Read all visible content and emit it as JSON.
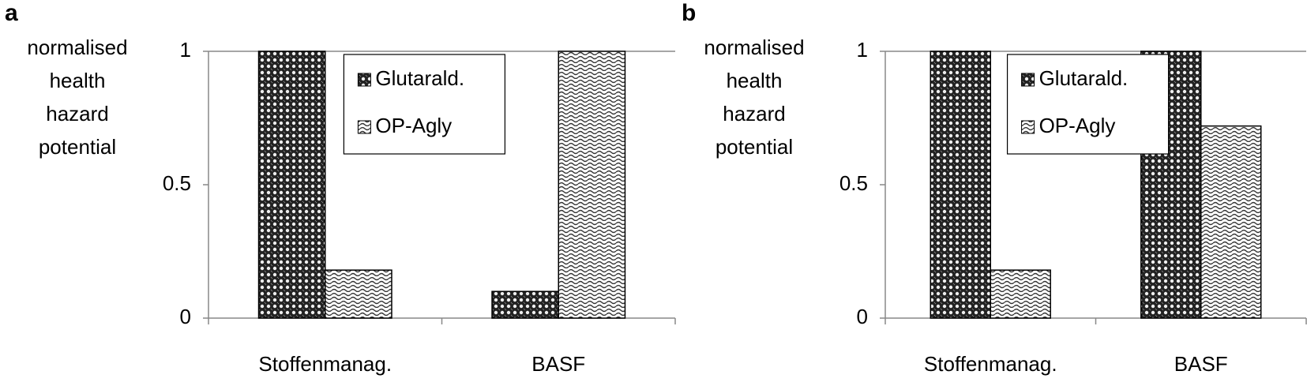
{
  "chart_data": [
    {
      "type": "bar",
      "panel_label": "a",
      "y_label": [
        "normalised",
        "health",
        "hazard",
        "potential"
      ],
      "categories": [
        "Stoffenmanag.",
        "BASF"
      ],
      "series": [
        {
          "name": "Glutarald.",
          "color": "#222222",
          "pattern": "dots",
          "values": [
            1,
            0.1
          ]
        },
        {
          "name": "OP-Agly",
          "color": "#bbbbbb",
          "pattern": "waves",
          "values": [
            0.18,
            1
          ]
        }
      ],
      "ylim": [
        0,
        1
      ],
      "yticks": [
        0,
        0.5,
        1
      ],
      "legend": "upper center"
    },
    {
      "type": "bar",
      "panel_label": "b",
      "y_label": [
        "normalised",
        "health",
        "hazard",
        "potential"
      ],
      "categories": [
        "Stoffenmanag.",
        "BASF"
      ],
      "series": [
        {
          "name": "Glutarald.",
          "color": "#222222",
          "pattern": "dots",
          "values": [
            1,
            1
          ]
        },
        {
          "name": "OP-Agly",
          "color": "#bbbbbb",
          "pattern": "waves",
          "values": [
            0.18,
            0.72
          ]
        }
      ],
      "ylim": [
        0,
        1
      ],
      "yticks": [
        0,
        0.5,
        1
      ],
      "legend": "upper center"
    }
  ]
}
